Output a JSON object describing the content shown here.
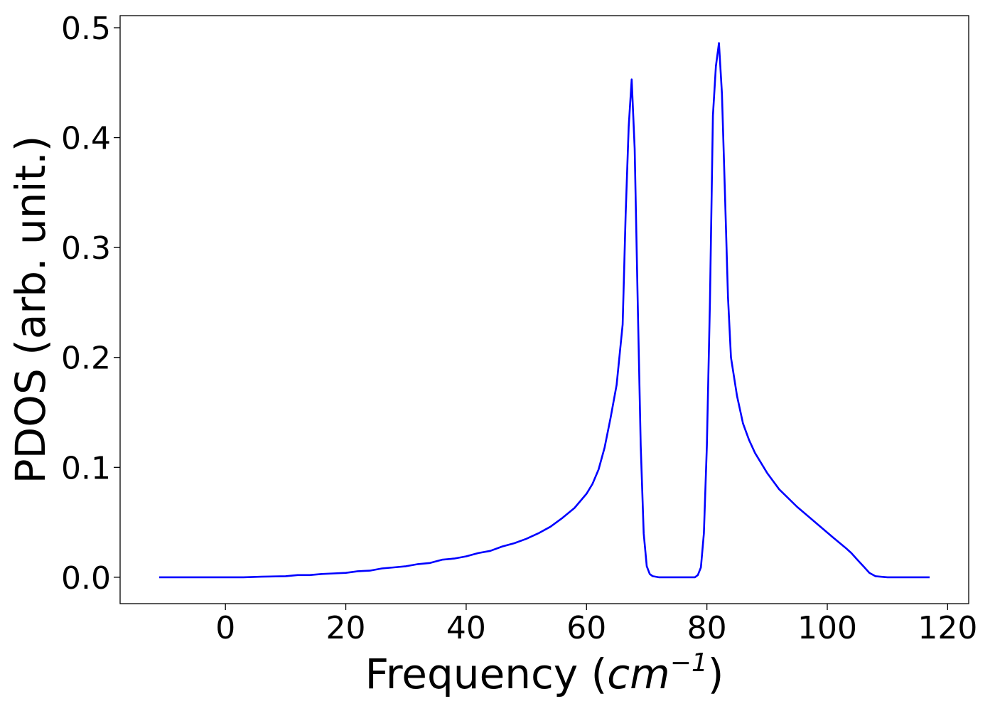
{
  "chart_data": {
    "type": "line",
    "title": "",
    "xlabel_parts": {
      "prefix": "Frequency (",
      "symbol": "cm",
      "superscript": "−1",
      "suffix": ")"
    },
    "ylabel": "PDOS (arb. unit.)",
    "xlim": [
      -17.5,
      123.5
    ],
    "ylim": [
      -0.024,
      0.511
    ],
    "xticks": [
      0,
      20,
      40,
      60,
      80,
      100,
      120
    ],
    "xtick_labels": [
      "0",
      "20",
      "40",
      "60",
      "80",
      "100",
      "120"
    ],
    "yticks": [
      0.0,
      0.1,
      0.2,
      0.3,
      0.4,
      0.5
    ],
    "ytick_labels": [
      "0.0",
      "0.1",
      "0.2",
      "0.3",
      "0.4",
      "0.5"
    ],
    "grid": false,
    "legend": "none",
    "series": [
      {
        "color": "#0000ff",
        "x": [
          -11,
          -5,
          0,
          3,
          6,
          10,
          12,
          14,
          16,
          18,
          20,
          22,
          24,
          26,
          28,
          30,
          32,
          34,
          36,
          38,
          40,
          42,
          44,
          46,
          48,
          50,
          52,
          54,
          56,
          58,
          60,
          61,
          62,
          63,
          64,
          65,
          66,
          66.5,
          67,
          67.5,
          68,
          68.5,
          69,
          69.5,
          70,
          70.5,
          71,
          72,
          74,
          76,
          78,
          78.5,
          79,
          79.5,
          80,
          80.5,
          81,
          81.5,
          82,
          82.5,
          83,
          83.5,
          84,
          85,
          86,
          87,
          88,
          90,
          92,
          95,
          98,
          101,
          103,
          104,
          105,
          106,
          107,
          108,
          110,
          117
        ],
        "y": [
          0.0,
          0.0,
          0.0,
          0.0,
          0.0005,
          0.001,
          0.002,
          0.002,
          0.003,
          0.0035,
          0.004,
          0.0055,
          0.006,
          0.008,
          0.009,
          0.01,
          0.012,
          0.013,
          0.016,
          0.017,
          0.019,
          0.022,
          0.024,
          0.028,
          0.031,
          0.035,
          0.04,
          0.046,
          0.054,
          0.063,
          0.076,
          0.085,
          0.098,
          0.118,
          0.145,
          0.175,
          0.23,
          0.33,
          0.41,
          0.453,
          0.39,
          0.25,
          0.12,
          0.04,
          0.01,
          0.003,
          0.001,
          0.0,
          0.0,
          0.0,
          0.0,
          0.002,
          0.009,
          0.04,
          0.12,
          0.25,
          0.42,
          0.465,
          0.486,
          0.44,
          0.35,
          0.255,
          0.2,
          0.165,
          0.14,
          0.125,
          0.113,
          0.095,
          0.08,
          0.064,
          0.05,
          0.036,
          0.027,
          0.022,
          0.016,
          0.01,
          0.004,
          0.001,
          0.0,
          0.0
        ]
      }
    ]
  }
}
